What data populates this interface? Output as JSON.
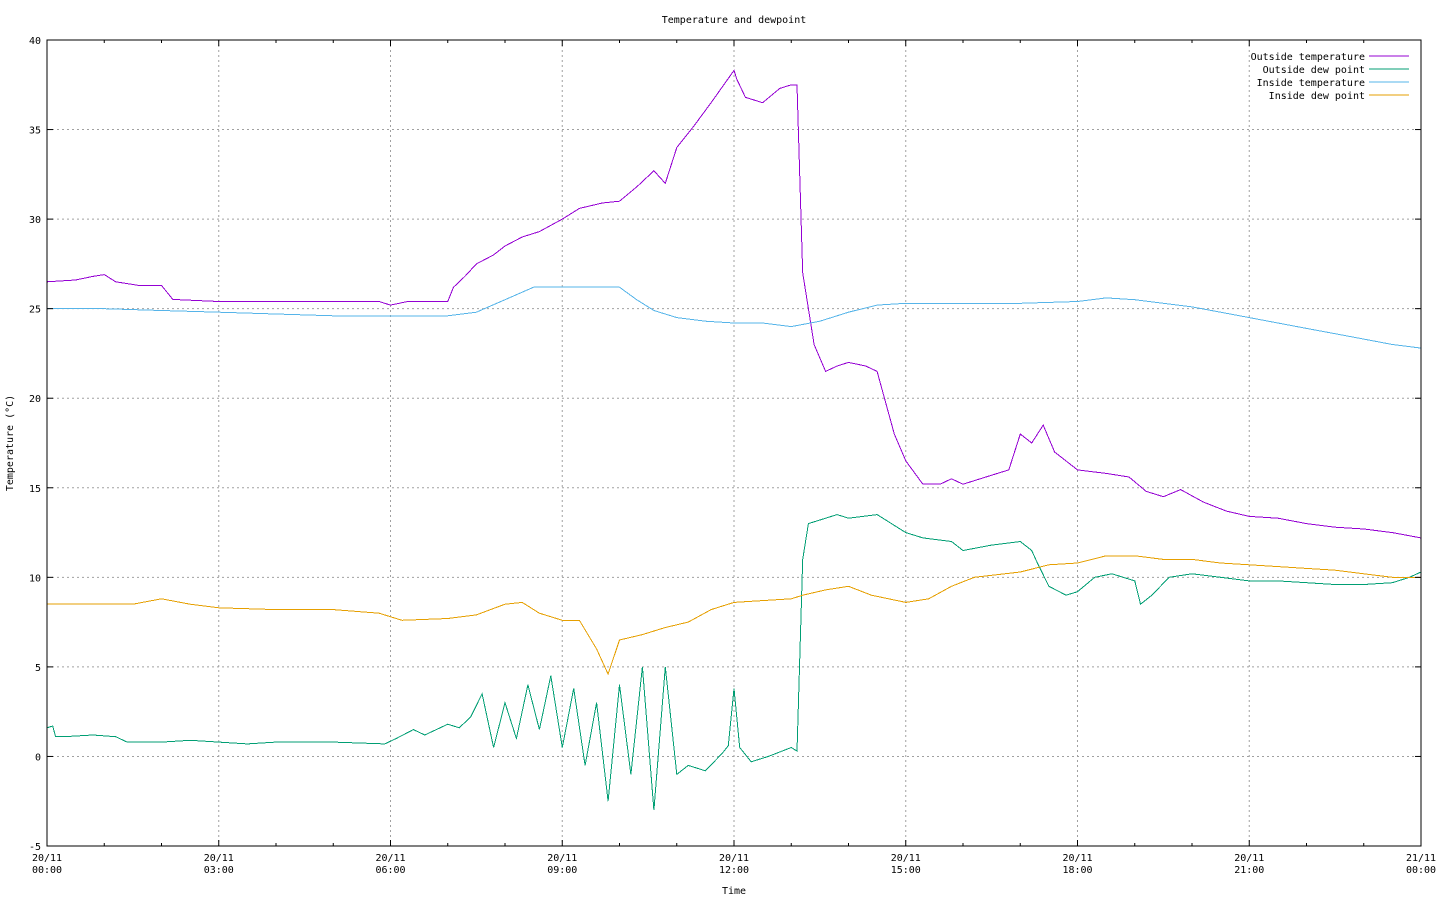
{
  "chart_data": {
    "type": "line",
    "title": "Temperature and dewpoint",
    "xlabel": "Time",
    "ylabel": "Temperature (°C)",
    "xlim": [
      "20/11 00:00",
      "21/11 00:00"
    ],
    "ylim": [
      -5,
      40
    ],
    "grid": true,
    "legend_position": "top-right",
    "x_ticks": [
      {
        "date": "20/11",
        "time": "00:00"
      },
      {
        "date": "20/11",
        "time": "03:00"
      },
      {
        "date": "20/11",
        "time": "06:00"
      },
      {
        "date": "20/11",
        "time": "09:00"
      },
      {
        "date": "20/11",
        "time": "12:00"
      },
      {
        "date": "20/11",
        "time": "15:00"
      },
      {
        "date": "20/11",
        "time": "18:00"
      },
      {
        "date": "20/11",
        "time": "21:00"
      },
      {
        "date": "21/11",
        "time": "00:00"
      }
    ],
    "y_ticks": [
      "-5",
      "0",
      "5",
      "10",
      "15",
      "20",
      "25",
      "30",
      "35",
      "40"
    ],
    "series": [
      {
        "name": "Outside temperature",
        "color": "#9400d3",
        "x_hours": [
          0,
          0.5,
          0.8,
          1.0,
          1.2,
          1.6,
          2.0,
          2.2,
          2.3,
          3.0,
          3.5,
          4.0,
          5.0,
          5.8,
          6.0,
          6.3,
          6.5,
          7.0,
          7.1,
          7.3,
          7.5,
          7.8,
          8.0,
          8.3,
          8.6,
          9.0,
          9.3,
          9.7,
          10.0,
          10.3,
          10.6,
          10.8,
          11.0,
          11.3,
          11.6,
          12.0,
          12.05,
          12.2,
          12.5,
          12.8,
          13.0,
          13.1,
          13.2,
          13.4,
          13.6,
          13.8,
          14.0,
          14.3,
          14.5,
          14.8,
          15.0,
          15.3,
          15.6,
          15.8,
          16.0,
          16.3,
          16.6,
          16.8,
          17.0,
          17.2,
          17.4,
          17.6,
          18.0,
          18.5,
          18.9,
          19.2,
          19.5,
          19.8,
          20.2,
          20.6,
          21.0,
          21.5,
          22.0,
          22.5,
          23.0,
          23.5,
          24.0
        ],
        "values": [
          26.5,
          26.6,
          26.8,
          26.9,
          26.5,
          26.3,
          26.3,
          25.5,
          25.5,
          25.4,
          25.4,
          25.4,
          25.4,
          25.4,
          25.2,
          25.4,
          25.4,
          25.4,
          26.2,
          26.8,
          27.5,
          28.0,
          28.5,
          29.0,
          29.3,
          30.0,
          30.6,
          30.9,
          31.0,
          31.8,
          32.7,
          32.0,
          34.0,
          35.2,
          36.5,
          38.3,
          37.8,
          36.8,
          36.5,
          37.3,
          37.5,
          37.5,
          27.0,
          23.0,
          21.5,
          21.8,
          22.0,
          21.8,
          21.5,
          18.0,
          16.5,
          15.2,
          15.2,
          15.5,
          15.2,
          15.5,
          15.8,
          16.0,
          18.0,
          17.5,
          18.5,
          17.0,
          16.0,
          15.8,
          15.6,
          14.8,
          14.5,
          14.9,
          14.2,
          13.7,
          13.4,
          13.3,
          13.0,
          12.8,
          12.7,
          12.5,
          12.2
        ]
      },
      {
        "name": "Outside dew point",
        "color": "#009e73",
        "x_hours": [
          0,
          0.1,
          0.15,
          0.3,
          0.8,
          1.2,
          1.4,
          2.0,
          2.5,
          3.0,
          3.5,
          4.0,
          5.0,
          5.9,
          6.1,
          6.4,
          6.6,
          6.8,
          7.0,
          7.2,
          7.4,
          7.6,
          7.8,
          8.0,
          8.2,
          8.4,
          8.6,
          8.8,
          9.0,
          9.2,
          9.4,
          9.6,
          9.8,
          10.0,
          10.2,
          10.4,
          10.6,
          10.8,
          11.0,
          11.2,
          11.5,
          11.8,
          11.9,
          12.0,
          12.1,
          12.3,
          12.6,
          13.0,
          13.1,
          13.2,
          13.3,
          13.5,
          13.8,
          14.0,
          14.5,
          15.0,
          15.3,
          15.8,
          16.0,
          16.5,
          17.0,
          17.2,
          17.3,
          17.5,
          17.8,
          18.0,
          18.3,
          18.6,
          19.0,
          19.1,
          19.3,
          19.6,
          20.0,
          20.5,
          21.0,
          21.5,
          22.0,
          22.5,
          23.0,
          23.5,
          23.8,
          24.0
        ],
        "values": [
          1.6,
          1.7,
          1.1,
          1.1,
          1.2,
          1.1,
          0.8,
          0.8,
          0.9,
          0.8,
          0.7,
          0.8,
          0.8,
          0.7,
          1.0,
          1.5,
          1.2,
          1.5,
          1.8,
          1.6,
          2.2,
          3.5,
          0.5,
          3.0,
          1.0,
          4.0,
          1.5,
          4.5,
          0.5,
          3.8,
          -0.5,
          3.0,
          -2.5,
          4.0,
          -1.0,
          5.0,
          -3.0,
          5.0,
          -1.0,
          -0.5,
          -0.8,
          0.2,
          0.6,
          3.8,
          0.5,
          -0.3,
          0.0,
          0.5,
          0.3,
          11.0,
          13.0,
          13.2,
          13.5,
          13.3,
          13.5,
          12.5,
          12.2,
          12.0,
          11.5,
          11.8,
          12.0,
          11.5,
          10.8,
          9.5,
          9.0,
          9.2,
          10.0,
          10.2,
          9.8,
          8.5,
          9.0,
          10.0,
          10.2,
          10.0,
          9.8,
          9.8,
          9.7,
          9.6,
          9.6,
          9.7,
          10.0,
          10.3
        ]
      },
      {
        "name": "Inside temperature",
        "color": "#56b4e9",
        "x_hours": [
          0,
          1.0,
          2.0,
          3.0,
          4.0,
          5.0,
          6.0,
          7.0,
          7.5,
          8.0,
          8.5,
          9.0,
          9.5,
          10.0,
          10.3,
          10.6,
          11.0,
          11.5,
          12.0,
          12.5,
          13.0,
          13.5,
          14.0,
          14.5,
          15.0,
          16.0,
          17.0,
          18.0,
          18.5,
          19.0,
          19.5,
          20.0,
          20.5,
          21.0,
          21.5,
          22.0,
          22.5,
          23.0,
          23.5,
          24.0
        ],
        "values": [
          25.0,
          25.0,
          24.9,
          24.8,
          24.7,
          24.6,
          24.6,
          24.6,
          24.8,
          25.5,
          26.2,
          26.2,
          26.2,
          26.2,
          25.5,
          24.9,
          24.5,
          24.3,
          24.2,
          24.2,
          24.0,
          24.3,
          24.8,
          25.2,
          25.3,
          25.3,
          25.3,
          25.4,
          25.6,
          25.5,
          25.3,
          25.1,
          24.8,
          24.5,
          24.2,
          23.9,
          23.6,
          23.3,
          23.0,
          22.8
        ]
      },
      {
        "name": "Inside dew point",
        "color": "#e69f00",
        "x_hours": [
          0,
          1.0,
          1.5,
          2.0,
          2.5,
          3.0,
          4.0,
          5.0,
          5.8,
          6.2,
          7.0,
          7.5,
          8.0,
          8.3,
          8.6,
          9.0,
          9.3,
          9.6,
          9.8,
          10.0,
          10.4,
          10.8,
          11.2,
          11.6,
          12.0,
          12.5,
          13.0,
          13.2,
          13.6,
          14.0,
          14.4,
          15.0,
          15.4,
          15.8,
          16.2,
          17.0,
          17.5,
          18.0,
          18.5,
          19.0,
          19.5,
          20.0,
          20.5,
          21.0,
          21.5,
          22.0,
          22.5,
          23.0,
          23.5,
          24.0
        ],
        "values": [
          8.5,
          8.5,
          8.5,
          8.8,
          8.5,
          8.3,
          8.2,
          8.2,
          8.0,
          7.6,
          7.7,
          7.9,
          8.5,
          8.6,
          8.0,
          7.6,
          7.6,
          6.0,
          4.6,
          6.5,
          6.8,
          7.2,
          7.5,
          8.2,
          8.6,
          8.7,
          8.8,
          9.0,
          9.3,
          9.5,
          9.0,
          8.6,
          8.8,
          9.5,
          10.0,
          10.3,
          10.7,
          10.8,
          11.2,
          11.2,
          11.0,
          11.0,
          10.8,
          10.7,
          10.6,
          10.5,
          10.4,
          10.2,
          10.0,
          10.0
        ]
      }
    ]
  }
}
